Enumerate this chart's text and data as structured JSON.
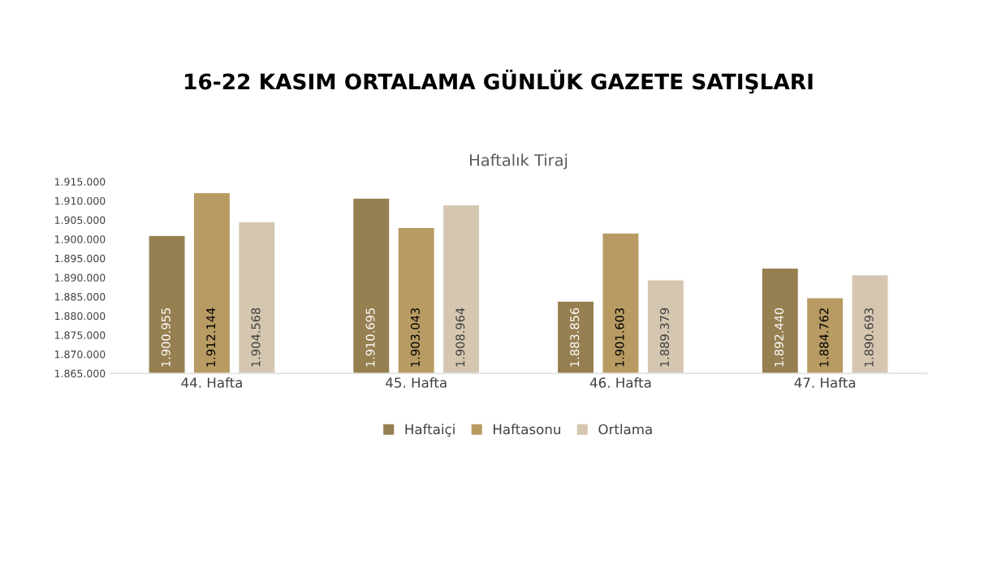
{
  "chart_data": {
    "type": "bar",
    "title": "16-22 KASIM ORTALAMA GÜNLÜK GAZETE SATIŞLARI",
    "subtitle": "Haftalık Tiraj",
    "categories": [
      "44. Hafta",
      "45. Hafta",
      "46. Hafta",
      "47. Hafta"
    ],
    "series": [
      {
        "name": "Haftaiçi",
        "color": "#967f50",
        "values": [
          1900955,
          1910695,
          1883856,
          1892440
        ],
        "value_labels": [
          "1.900.955",
          "1.910.695",
          "1.883.856",
          "1.892.440"
        ]
      },
      {
        "name": "Haftasonu",
        "color": "#b89b62",
        "values": [
          1912144,
          1903043,
          1901603,
          1884762
        ],
        "value_labels": [
          "1.912.144",
          "1.903.043",
          "1.901.603",
          "1.884.762"
        ]
      },
      {
        "name": "Ortlama",
        "color": "#d5c6b0",
        "values": [
          1904568,
          1908964,
          1889379,
          1890693
        ],
        "value_labels": [
          "1.904.568",
          "1.908.964",
          "1.889.379",
          "1.890.693"
        ]
      }
    ],
    "ylim": [
      1865000,
      1915000
    ],
    "yticks": [
      {
        "value": 1865000,
        "label": "1.865.000"
      },
      {
        "value": 1870000,
        "label": "1.870.000"
      },
      {
        "value": 1875000,
        "label": "1.875.000"
      },
      {
        "value": 1880000,
        "label": "1.880.000"
      },
      {
        "value": 1885000,
        "label": "1.885.000"
      },
      {
        "value": 1890000,
        "label": "1.890.000"
      },
      {
        "value": 1895000,
        "label": "1.895.000"
      },
      {
        "value": 1900000,
        "label": "1.900.000"
      },
      {
        "value": 1905000,
        "label": "1.905.000"
      },
      {
        "value": 1910000,
        "label": "1.910.000"
      },
      {
        "value": 1915000,
        "label": "1.915.000"
      }
    ],
    "grid": false,
    "legend": "bottom"
  }
}
